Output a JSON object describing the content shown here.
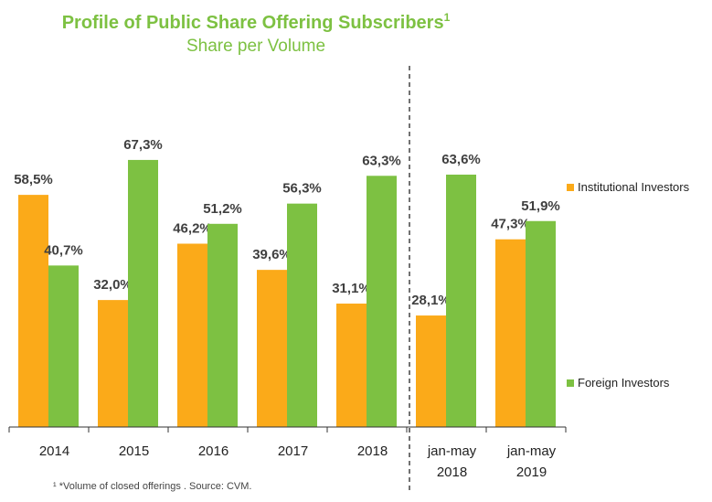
{
  "header": {
    "title": "Profile of Public Share Offering Subscribers",
    "title_sup": "1",
    "subtitle": "Share per Volume"
  },
  "footnote": "¹ *Volume of closed offerings . Source: CVM.",
  "colors": {
    "institutional": "#fbaa19",
    "foreign": "#7dc142",
    "title": "#7dc142",
    "axis": "#333333",
    "divider": "#444444"
  },
  "chart_data": {
    "type": "bar",
    "categories": [
      "2014",
      "2015",
      "2016",
      "2017",
      "2018",
      "jan-may 2018",
      "jan-may 2019"
    ],
    "series": [
      {
        "name": "Institutional Investors",
        "values": [
          58.5,
          32.0,
          46.2,
          39.6,
          31.1,
          28.1,
          47.3
        ],
        "labels": [
          "58,5%",
          "32,0%",
          "46,2%",
          "39,6%",
          "31,1%",
          "28,1%",
          "47,3%"
        ]
      },
      {
        "name": "Foreign Investors",
        "values": [
          40.7,
          67.3,
          51.2,
          56.3,
          63.3,
          63.6,
          51.9
        ],
        "labels": [
          "40,7%",
          "67,3%",
          "51,2%",
          "56,3%",
          "63,3%",
          "63,6%",
          "51,9%"
        ]
      }
    ],
    "ylim": [
      0,
      70
    ],
    "grid": false,
    "legend": "right",
    "divider_after_category": "2018"
  }
}
